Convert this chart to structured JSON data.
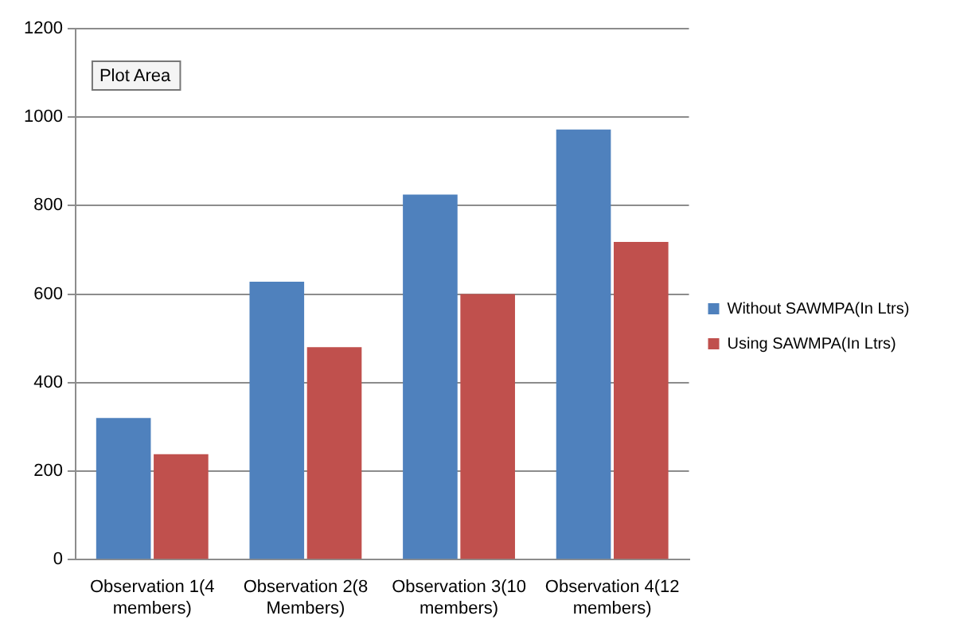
{
  "chart_data": {
    "type": "bar",
    "categories": [
      "Observation 1(4 members)",
      "Observation 2(8 Members)",
      "Observation 3(10 members)",
      "Observation 4(12 members)"
    ],
    "series": [
      {
        "name": "Without SAWMPA(In Ltrs)",
        "color": "#4f81bd",
        "values": [
          320,
          628,
          825,
          972
        ]
      },
      {
        "name": "Using SAWMPA(In Ltrs)",
        "color": "#c0504d",
        "values": [
          238,
          480,
          600,
          718
        ]
      }
    ],
    "ylim": [
      0,
      1200
    ],
    "yticks": [
      0,
      200,
      400,
      600,
      800,
      1000,
      1200
    ],
    "grid": "y",
    "legend": "right",
    "annotations": [
      "Plot Area"
    ]
  }
}
